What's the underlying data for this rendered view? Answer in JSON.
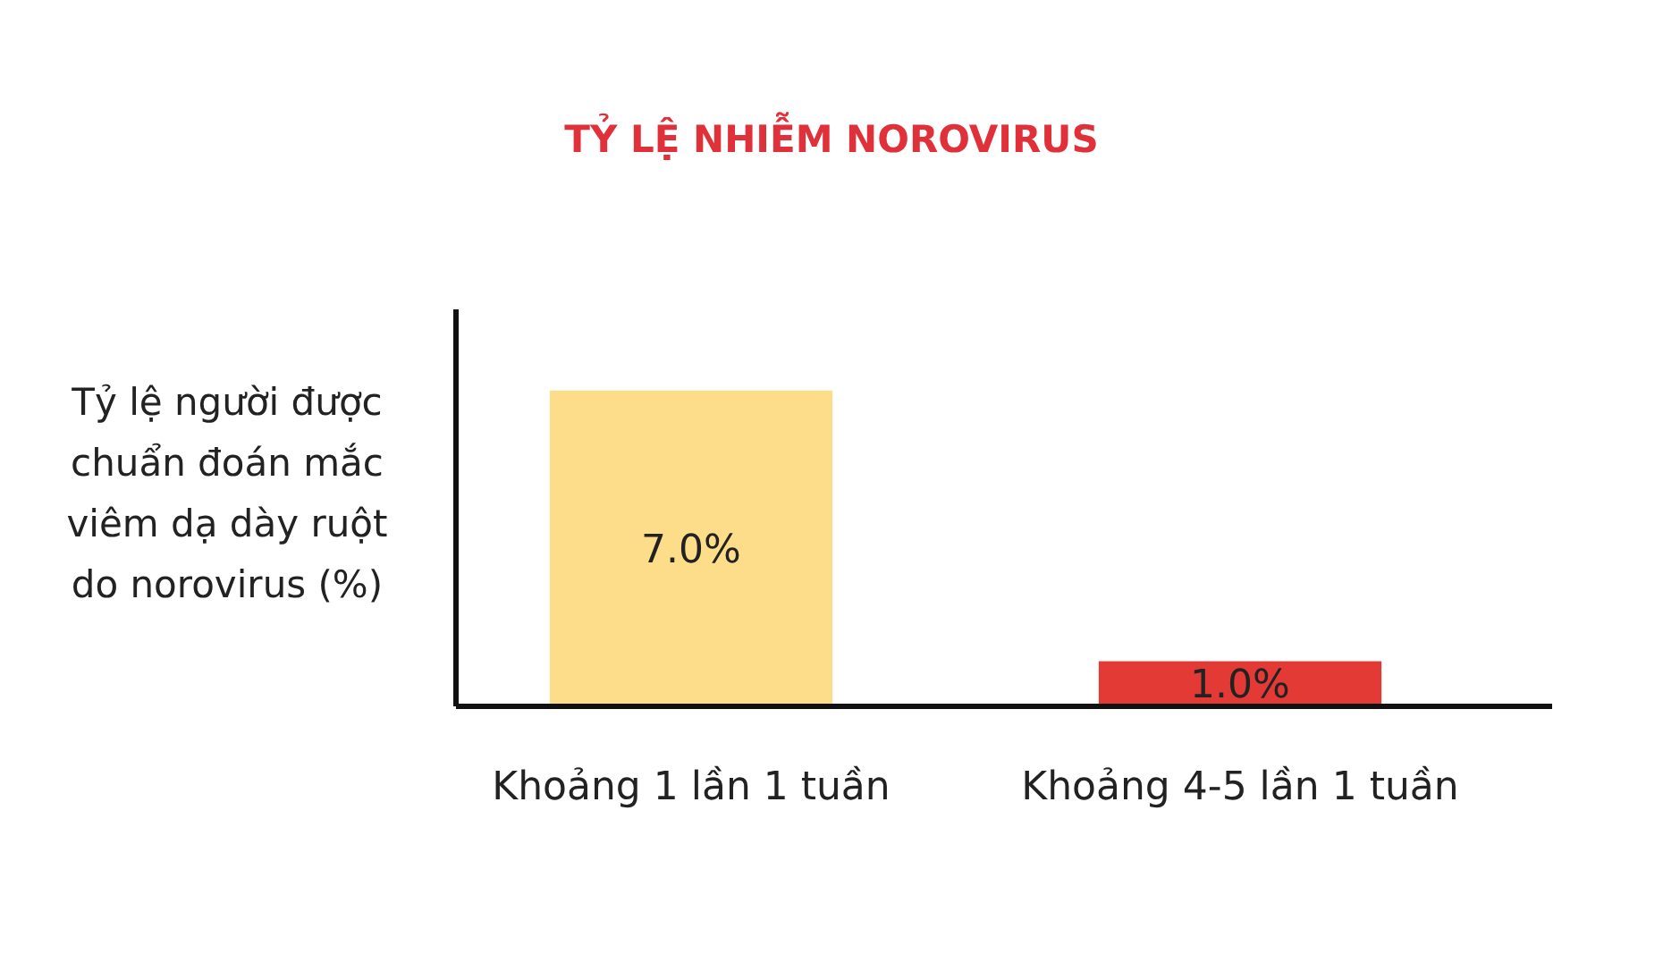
{
  "chart_data": {
    "type": "bar",
    "title": "TỶ LỆ NHIỄM NOROVIRUS",
    "ylabel": "Tỷ lệ người được chuẩn đoán mắc viêm dạ dày ruột do norovirus (%)",
    "categories": [
      "Khoảng 1 lần 1 tuần",
      "Khoảng 4-5 lần 1 tuần"
    ],
    "values": [
      7.0,
      1.0
    ],
    "colors": [
      "#fddc8a",
      "#e43a36"
    ],
    "value_labels": [
      "7.0%",
      "1.0%"
    ],
    "ylim": [
      0,
      8.8
    ],
    "tick_labels": "x"
  }
}
